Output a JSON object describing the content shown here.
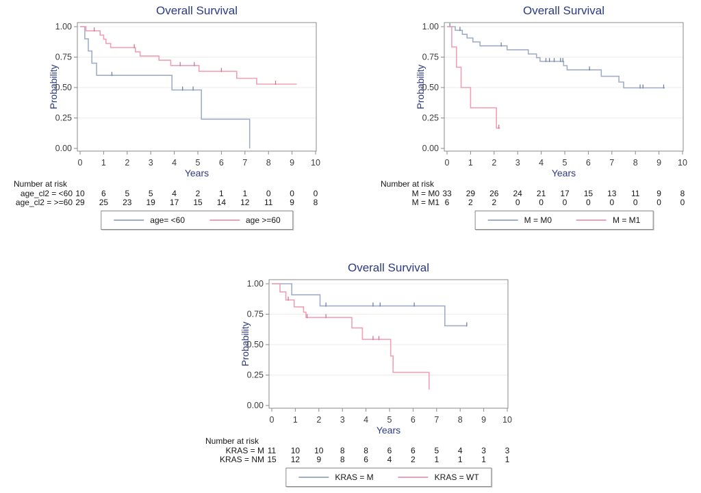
{
  "page": {
    "background": "#ffffff"
  },
  "colors": {
    "title_text": "#2b3a80",
    "axis_label_text": "#2b3a80",
    "tick_label_text": "#3c3c3c",
    "frame": "#8a8a8a",
    "grid": "#ececec",
    "number_at_risk_text": "#141414",
    "group_blue": "#a0adc8",
    "group_blue_censor": "#70809f",
    "group_pink": "#f0a0b4",
    "group_pink_censor": "#c97790"
  },
  "chart_data": [
    {
      "type": "line",
      "subtype": "kaplan_meier_step",
      "title": "Overall Survival",
      "xlabel": "Years",
      "ylabel": "Probability",
      "xlim": [
        0,
        10
      ],
      "ylim": [
        0.0,
        1.0
      ],
      "xticks": [
        0,
        1,
        2,
        3,
        4,
        5,
        6,
        7,
        8,
        9,
        10
      ],
      "ytick_values": [
        0,
        0.25,
        0.5,
        0.75,
        1.0
      ],
      "ytick_labels": [
        "0.00",
        "0.25",
        "0.50",
        "0.75",
        "1.00"
      ],
      "grid": "horizontal",
      "legend_position": "bottom",
      "series": [
        {
          "name": "age= <60",
          "color": "#a0adc8",
          "censor_color": "#70809f",
          "steps": [
            [
              0,
              1.0
            ],
            [
              0.2,
              0.9
            ],
            [
              0.35,
              0.8
            ],
            [
              0.5,
              0.7
            ],
            [
              0.7,
              0.6
            ],
            [
              3.9,
              0.48
            ],
            [
              5.15,
              0.24
            ],
            [
              7.2,
              0.0
            ]
          ],
          "end_x": 7.2,
          "censors": [
            [
              1.35,
              0.6
            ],
            [
              4.35,
              0.48
            ],
            [
              4.8,
              0.48
            ]
          ]
        },
        {
          "name": "age >=60",
          "color": "#f0a0b4",
          "censor_color": "#c97790",
          "steps": [
            [
              0,
              1.0
            ],
            [
              0.25,
              0.966
            ],
            [
              0.85,
              0.931
            ],
            [
              1.0,
              0.897
            ],
            [
              1.1,
              0.862
            ],
            [
              1.3,
              0.828
            ],
            [
              2.35,
              0.793
            ],
            [
              2.55,
              0.759
            ],
            [
              3.35,
              0.724
            ],
            [
              3.85,
              0.681
            ],
            [
              5.05,
              0.633
            ],
            [
              6.65,
              0.576
            ],
            [
              7.5,
              0.528
            ]
          ],
          "end_x": 9.2,
          "censors": [
            [
              0.6,
              0.966
            ],
            [
              2.3,
              0.828
            ],
            [
              4.25,
              0.681
            ],
            [
              4.85,
              0.681
            ],
            [
              6.0,
              0.633
            ],
            [
              8.3,
              0.528
            ]
          ]
        }
      ],
      "number_at_risk": {
        "header": "Number at risk",
        "times": [
          0,
          1,
          2,
          3,
          4,
          5,
          6,
          7,
          8,
          9,
          10
        ],
        "rows": [
          {
            "label": "age_cl2 = <60",
            "counts": [
              10,
              6,
              5,
              5,
              4,
              2,
              1,
              1,
              0,
              0,
              0
            ]
          },
          {
            "label": "age_cl2 = >=60",
            "counts": [
              29,
              25,
              23,
              19,
              17,
              15,
              14,
              12,
              11,
              9,
              8
            ]
          }
        ]
      }
    },
    {
      "type": "line",
      "subtype": "kaplan_meier_step",
      "title": "Overall Survival",
      "xlabel": "Years",
      "ylabel": "Probability",
      "xlim": [
        0,
        10
      ],
      "ylim": [
        0.0,
        1.0
      ],
      "xticks": [
        0,
        1,
        2,
        3,
        4,
        5,
        6,
        7,
        8,
        9,
        10
      ],
      "ytick_values": [
        0,
        0.25,
        0.5,
        0.75,
        1.0
      ],
      "ytick_labels": [
        "0.00",
        "0.25",
        "0.50",
        "0.75",
        "1.00"
      ],
      "grid": "horizontal",
      "legend_position": "bottom",
      "series": [
        {
          "name": "M = M0",
          "color": "#a0adc8",
          "censor_color": "#70809f",
          "steps": [
            [
              0,
              1.0
            ],
            [
              0.35,
              0.97
            ],
            [
              0.65,
              0.937
            ],
            [
              0.85,
              0.907
            ],
            [
              1.1,
              0.875
            ],
            [
              1.4,
              0.842
            ],
            [
              2.55,
              0.81
            ],
            [
              3.45,
              0.776
            ],
            [
              3.8,
              0.745
            ],
            [
              3.95,
              0.715
            ],
            [
              4.95,
              0.68
            ],
            [
              5.1,
              0.645
            ],
            [
              6.55,
              0.592
            ],
            [
              7.3,
              0.545
            ],
            [
              7.5,
              0.497
            ]
          ],
          "end_x": 9.25,
          "censors": [
            [
              0.12,
              1.0
            ],
            [
              0.55,
              0.97
            ],
            [
              2.3,
              0.842
            ],
            [
              4.2,
              0.715
            ],
            [
              4.35,
              0.715
            ],
            [
              4.55,
              0.715
            ],
            [
              4.82,
              0.715
            ],
            [
              4.92,
              0.715
            ],
            [
              6.05,
              0.645
            ],
            [
              8.2,
              0.497
            ],
            [
              8.32,
              0.497
            ],
            [
              9.2,
              0.497
            ]
          ]
        },
        {
          "name": "M = M1",
          "color": "#f0a0b4",
          "censor_color": "#c97790",
          "steps": [
            [
              0,
              1.0
            ],
            [
              0.2,
              0.833
            ],
            [
              0.4,
              0.667
            ],
            [
              0.6,
              0.5
            ],
            [
              1.0,
              0.333
            ],
            [
              2.1,
              0.167
            ]
          ],
          "end_x": 2.25,
          "censors": [
            [
              2.2,
              0.167
            ]
          ]
        }
      ],
      "number_at_risk": {
        "header": "Number at risk",
        "times": [
          0,
          1,
          2,
          3,
          4,
          5,
          6,
          7,
          8,
          9,
          10
        ],
        "rows": [
          {
            "label": "M = M0",
            "counts": [
              33,
              29,
              26,
              24,
              21,
              17,
              15,
              13,
              11,
              9,
              8
            ]
          },
          {
            "label": "M = M1",
            "counts": [
              6,
              2,
              2,
              0,
              0,
              0,
              0,
              0,
              0,
              0,
              0
            ]
          }
        ]
      }
    },
    {
      "type": "line",
      "subtype": "kaplan_meier_step",
      "title": "Overall Survival",
      "xlabel": "Years",
      "ylabel": "Probability",
      "xlim": [
        0,
        10
      ],
      "ylim": [
        0.0,
        1.0
      ],
      "xticks": [
        0,
        1,
        2,
        3,
        4,
        5,
        6,
        7,
        8,
        9,
        10
      ],
      "ytick_values": [
        0,
        0.25,
        0.5,
        0.75,
        1.0
      ],
      "ytick_labels": [
        "0.00",
        "0.25",
        "0.50",
        "0.75",
        "1.00"
      ],
      "grid": "horizontal",
      "legend_position": "bottom",
      "series": [
        {
          "name": "KRAS = M",
          "color": "#a0adc8",
          "censor_color": "#70809f",
          "steps": [
            [
              0,
              1.0
            ],
            [
              0.85,
              0.909
            ],
            [
              2.05,
              0.818
            ],
            [
              7.35,
              0.655
            ]
          ],
          "end_x": 8.3,
          "censors": [
            [
              2.3,
              0.818
            ],
            [
              4.3,
              0.818
            ],
            [
              4.6,
              0.818
            ],
            [
              6.05,
              0.818
            ],
            [
              8.28,
              0.655
            ]
          ]
        },
        {
          "name": "KRAS = WT",
          "color": "#f0a0b4",
          "censor_color": "#c97790",
          "steps": [
            [
              0,
              1.0
            ],
            [
              0.35,
              0.933
            ],
            [
              0.6,
              0.867
            ],
            [
              0.95,
              0.81
            ],
            [
              1.35,
              0.767
            ],
            [
              1.45,
              0.723
            ],
            [
              3.4,
              0.637
            ],
            [
              3.85,
              0.543
            ],
            [
              5.05,
              0.407
            ],
            [
              5.15,
              0.272
            ],
            [
              6.68,
              0.136
            ]
          ],
          "end_x": 6.7,
          "censors": [
            [
              0.7,
              0.867
            ],
            [
              1.5,
              0.723
            ],
            [
              2.3,
              0.723
            ],
            [
              4.3,
              0.543
            ],
            [
              4.55,
              0.543
            ]
          ]
        }
      ],
      "number_at_risk": {
        "header": "Number at risk",
        "times": [
          0,
          1,
          2,
          3,
          4,
          5,
          6,
          7,
          8,
          9,
          10
        ],
        "rows": [
          {
            "label": "KRAS = M",
            "counts": [
              11,
              10,
              10,
              8,
              8,
              6,
              6,
              5,
              4,
              3,
              3
            ]
          },
          {
            "label": "KRAS = NM",
            "counts": [
              15,
              12,
              9,
              8,
              6,
              4,
              2,
              1,
              1,
              1,
              1
            ]
          }
        ]
      }
    }
  ]
}
